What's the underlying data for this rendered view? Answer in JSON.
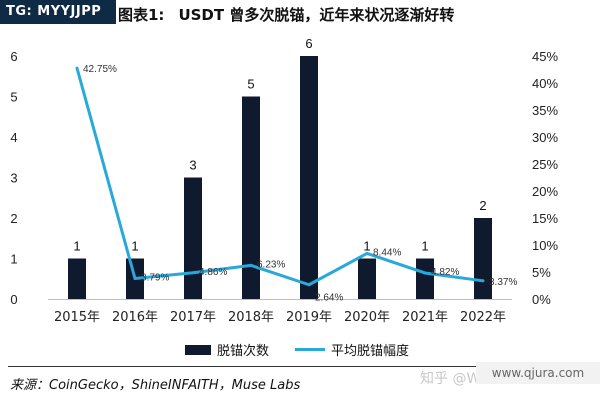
{
  "badge": "TG: MYYJJPP",
  "title": {
    "label": "图表1:",
    "text": "USDT 曾多次脱锚，近年来状况逐渐好转"
  },
  "chart_data": {
    "type": "bar",
    "categories": [
      "2015年",
      "2016年",
      "2017年",
      "2018年",
      "2019年",
      "2020年",
      "2021年",
      "2022年"
    ],
    "series": [
      {
        "name": "脱锚次数",
        "type": "bar",
        "axis": "left",
        "values": [
          1,
          1,
          3,
          5,
          6,
          1,
          1,
          2
        ],
        "color": "#0f1a2e",
        "labels": [
          "1",
          "1",
          "3",
          "5",
          "6",
          "1",
          "1",
          "2"
        ]
      },
      {
        "name": "平均脱锚幅度",
        "type": "line",
        "axis": "right",
        "values": [
          42.75,
          3.79,
          4.86,
          6.23,
          2.64,
          8.44,
          4.82,
          3.37
        ],
        "color": "#29a8dc",
        "labels": [
          "42.75%",
          "3.79%",
          "4.86%",
          "6.23%",
          "2.64%",
          "8.44%",
          "4.82%",
          "3.37%"
        ]
      }
    ],
    "ylim_left": [
      0,
      6
    ],
    "yticks_left": [
      "0",
      "1",
      "2",
      "3",
      "4",
      "5",
      "6"
    ],
    "ylim_right": [
      0,
      45
    ],
    "yticks_right": [
      "0%",
      "5%",
      "10%",
      "15%",
      "20%",
      "25%",
      "30%",
      "35%",
      "40%",
      "45%"
    ],
    "grid": false,
    "legend_position": "bottom"
  },
  "legend": {
    "bar": "脱锚次数",
    "line": "平均脱锚幅度"
  },
  "source": "来源：CoinGecko，ShineINFAITH，Muse Labs",
  "watermark": {
    "zhihu": "知乎 @W",
    "site": "www.qjura.com"
  }
}
